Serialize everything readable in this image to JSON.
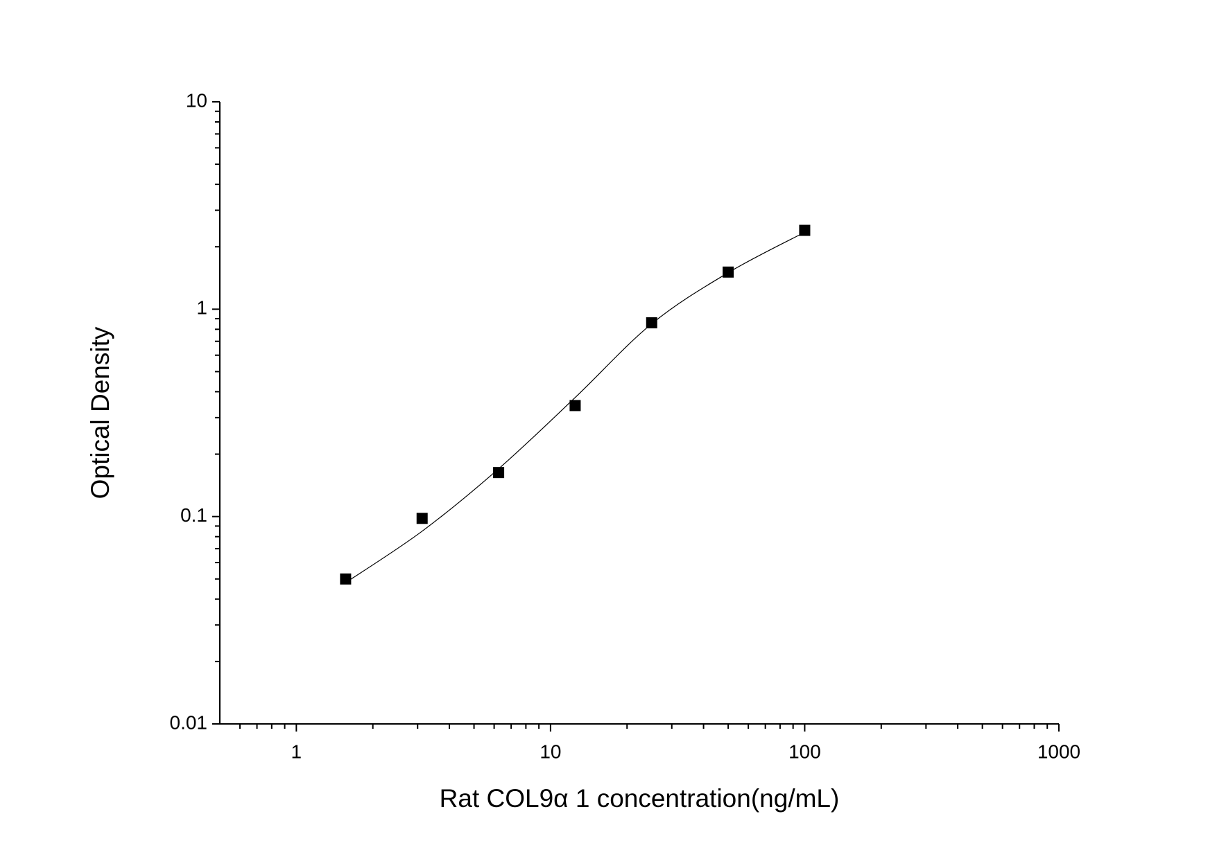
{
  "chart_data": {
    "type": "scatter",
    "xlabel": "Rat COL9α 1 concentration(ng/mL)",
    "ylabel": "Optical Density",
    "xscale": "log",
    "yscale": "log",
    "xlim": [
      0.5,
      1000
    ],
    "ylim": [
      0.01,
      10
    ],
    "xticks": [
      1,
      10,
      100,
      1000
    ],
    "yticks": [
      0.01,
      0.1,
      1,
      10
    ],
    "xminorticks": [
      0.6,
      0.7,
      0.8,
      0.9,
      2,
      3,
      4,
      5,
      6,
      7,
      8,
      9,
      20,
      30,
      40,
      50,
      60,
      70,
      80,
      90,
      200,
      300,
      400,
      500,
      600,
      700,
      800,
      900
    ],
    "yminorticks": [
      0.02,
      0.03,
      0.04,
      0.05,
      0.06,
      0.07,
      0.08,
      0.09,
      0.2,
      0.3,
      0.4,
      0.5,
      0.6,
      0.7,
      0.8,
      0.9,
      2,
      3,
      4,
      5,
      6,
      7,
      8,
      9
    ],
    "series": [
      {
        "style": "markers",
        "marker": "square",
        "color": "#000000",
        "x": [
          1.5625,
          3.125,
          6.25,
          12.5,
          25,
          50,
          100
        ],
        "values": [
          0.05,
          0.098,
          0.163,
          0.343,
          0.86,
          1.51,
          2.4
        ]
      },
      {
        "style": "line",
        "color": "#000000",
        "x": [
          1.5625,
          3.125,
          6.25,
          12.5,
          25,
          50,
          100
        ],
        "values": [
          0.048,
          0.085,
          0.17,
          0.375,
          0.85,
          1.5,
          2.35
        ]
      }
    ]
  }
}
